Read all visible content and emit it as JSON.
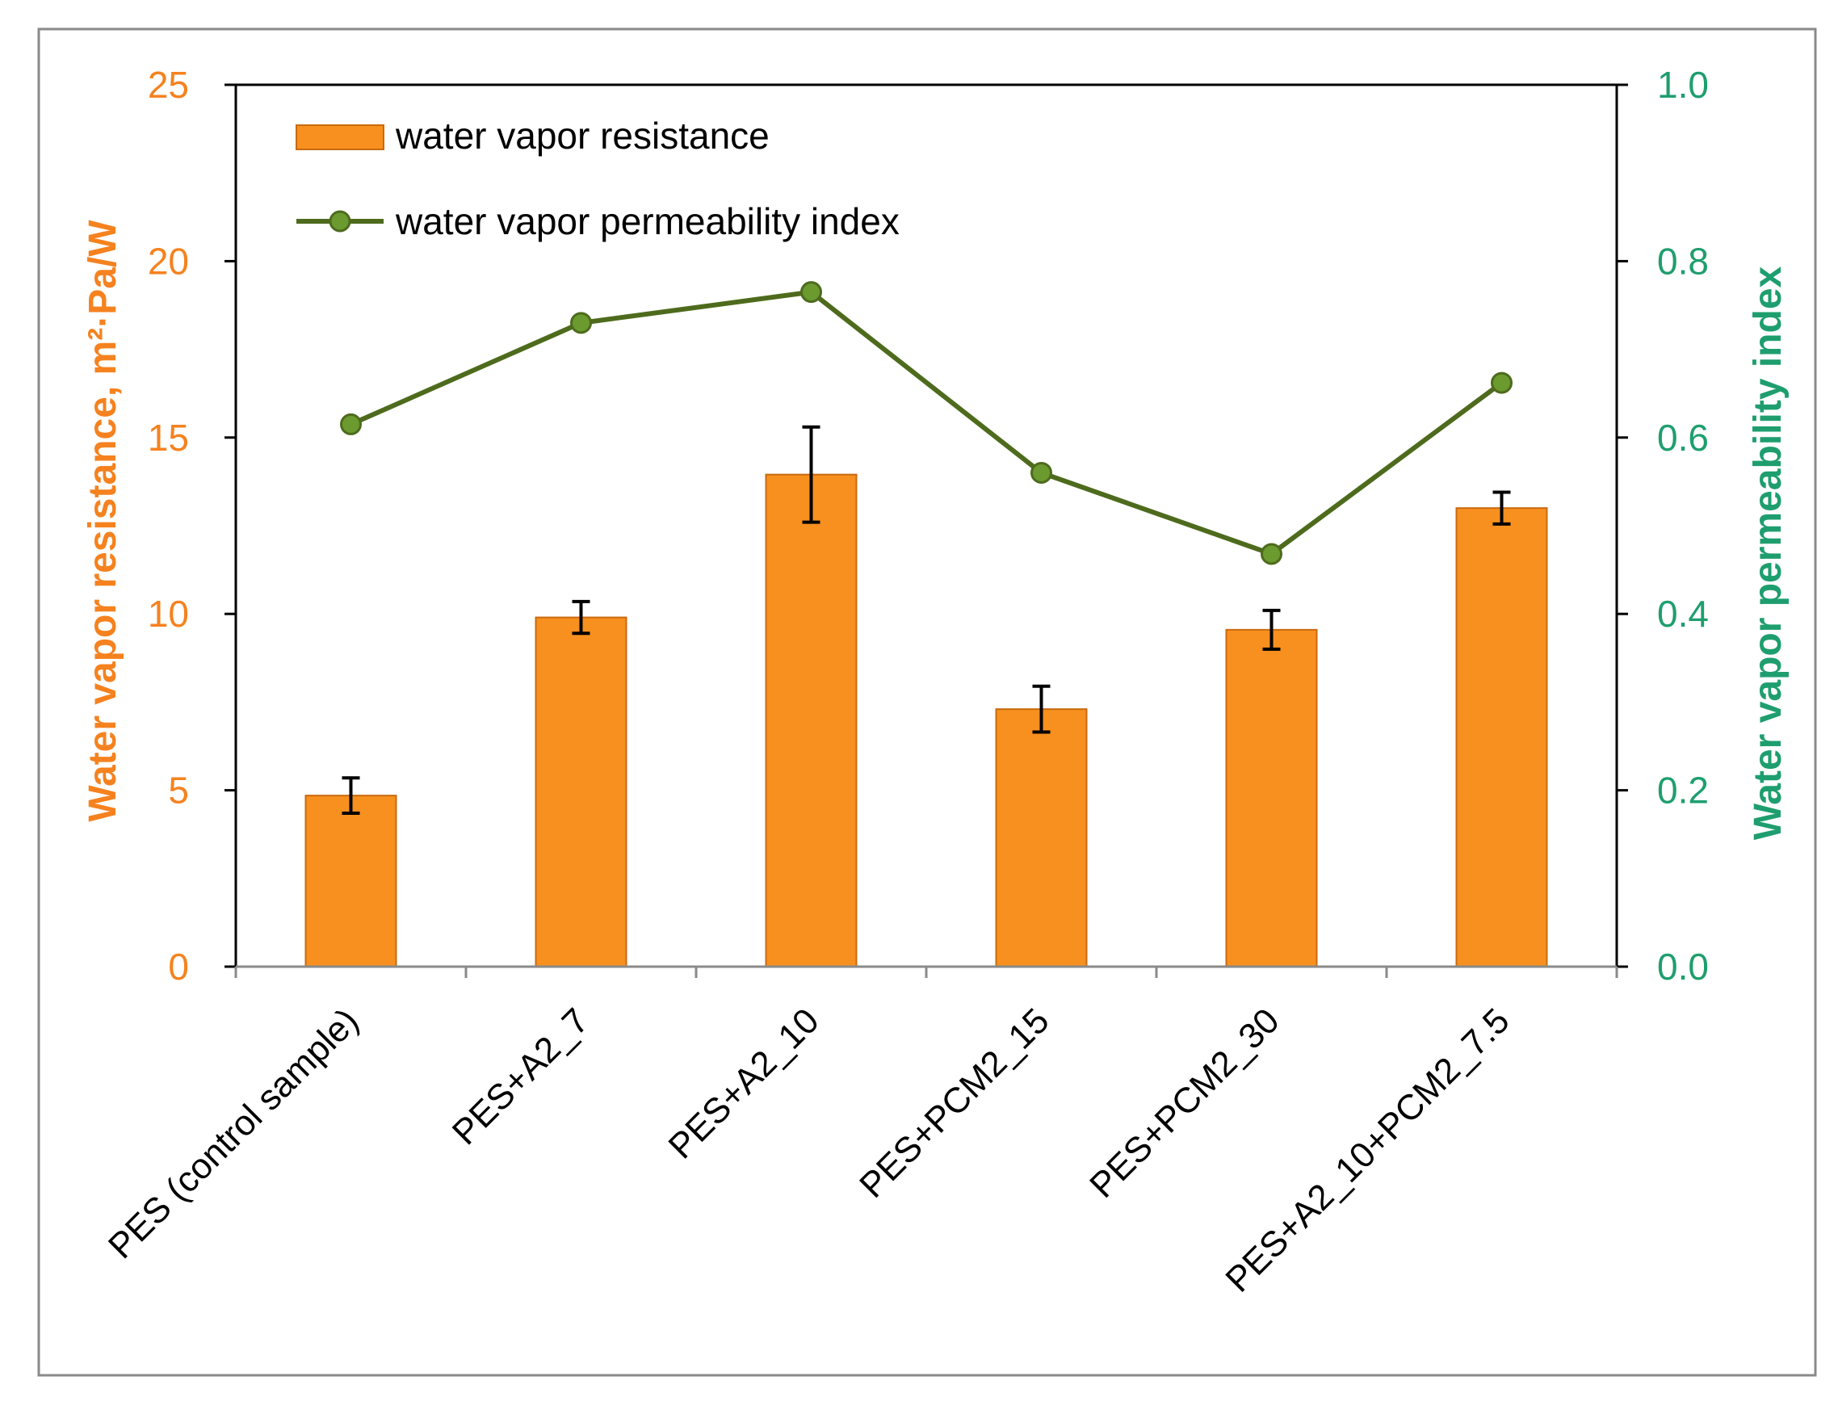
{
  "chart_data": {
    "type": "bar+line",
    "categories": [
      "PES (control sample)",
      "PES+A2_7",
      "PES+A2_10",
      "PES+PCM2_15",
      "PES+PCM2_30",
      "PES+A2_10+PCM2_7.5"
    ],
    "series": [
      {
        "name": "water vapor resistance",
        "type": "bar",
        "axis": "left",
        "values": [
          4.85,
          9.9,
          13.95,
          7.3,
          9.55,
          13.0
        ],
        "error": [
          0.5,
          0.45,
          1.35,
          0.65,
          0.55,
          0.45
        ],
        "color": "#F7901E"
      },
      {
        "name": "water vapor permeability index",
        "type": "line",
        "axis": "right",
        "values": [
          0.615,
          0.73,
          0.765,
          0.56,
          0.468,
          0.662
        ],
        "color": "#4E6B1D",
        "marker_color": "#6B9A2F"
      }
    ],
    "ylabel_left": "Water vapor resistance, m²·Pa/W",
    "ylabel_right": "Water vapor permeability index",
    "ylim_left": [
      0,
      25
    ],
    "ylim_right": [
      0,
      1.0
    ],
    "yticks_left": [
      "0",
      "5",
      "10",
      "15",
      "20",
      "25"
    ],
    "yticks_right": [
      "0.0",
      "0.2",
      "0.4",
      "0.6",
      "0.8",
      "1.0"
    ],
    "legend_position": "top-left",
    "grid": false,
    "left_axis_color": "#F5821F",
    "right_axis_color": "#1E9E6E"
  }
}
